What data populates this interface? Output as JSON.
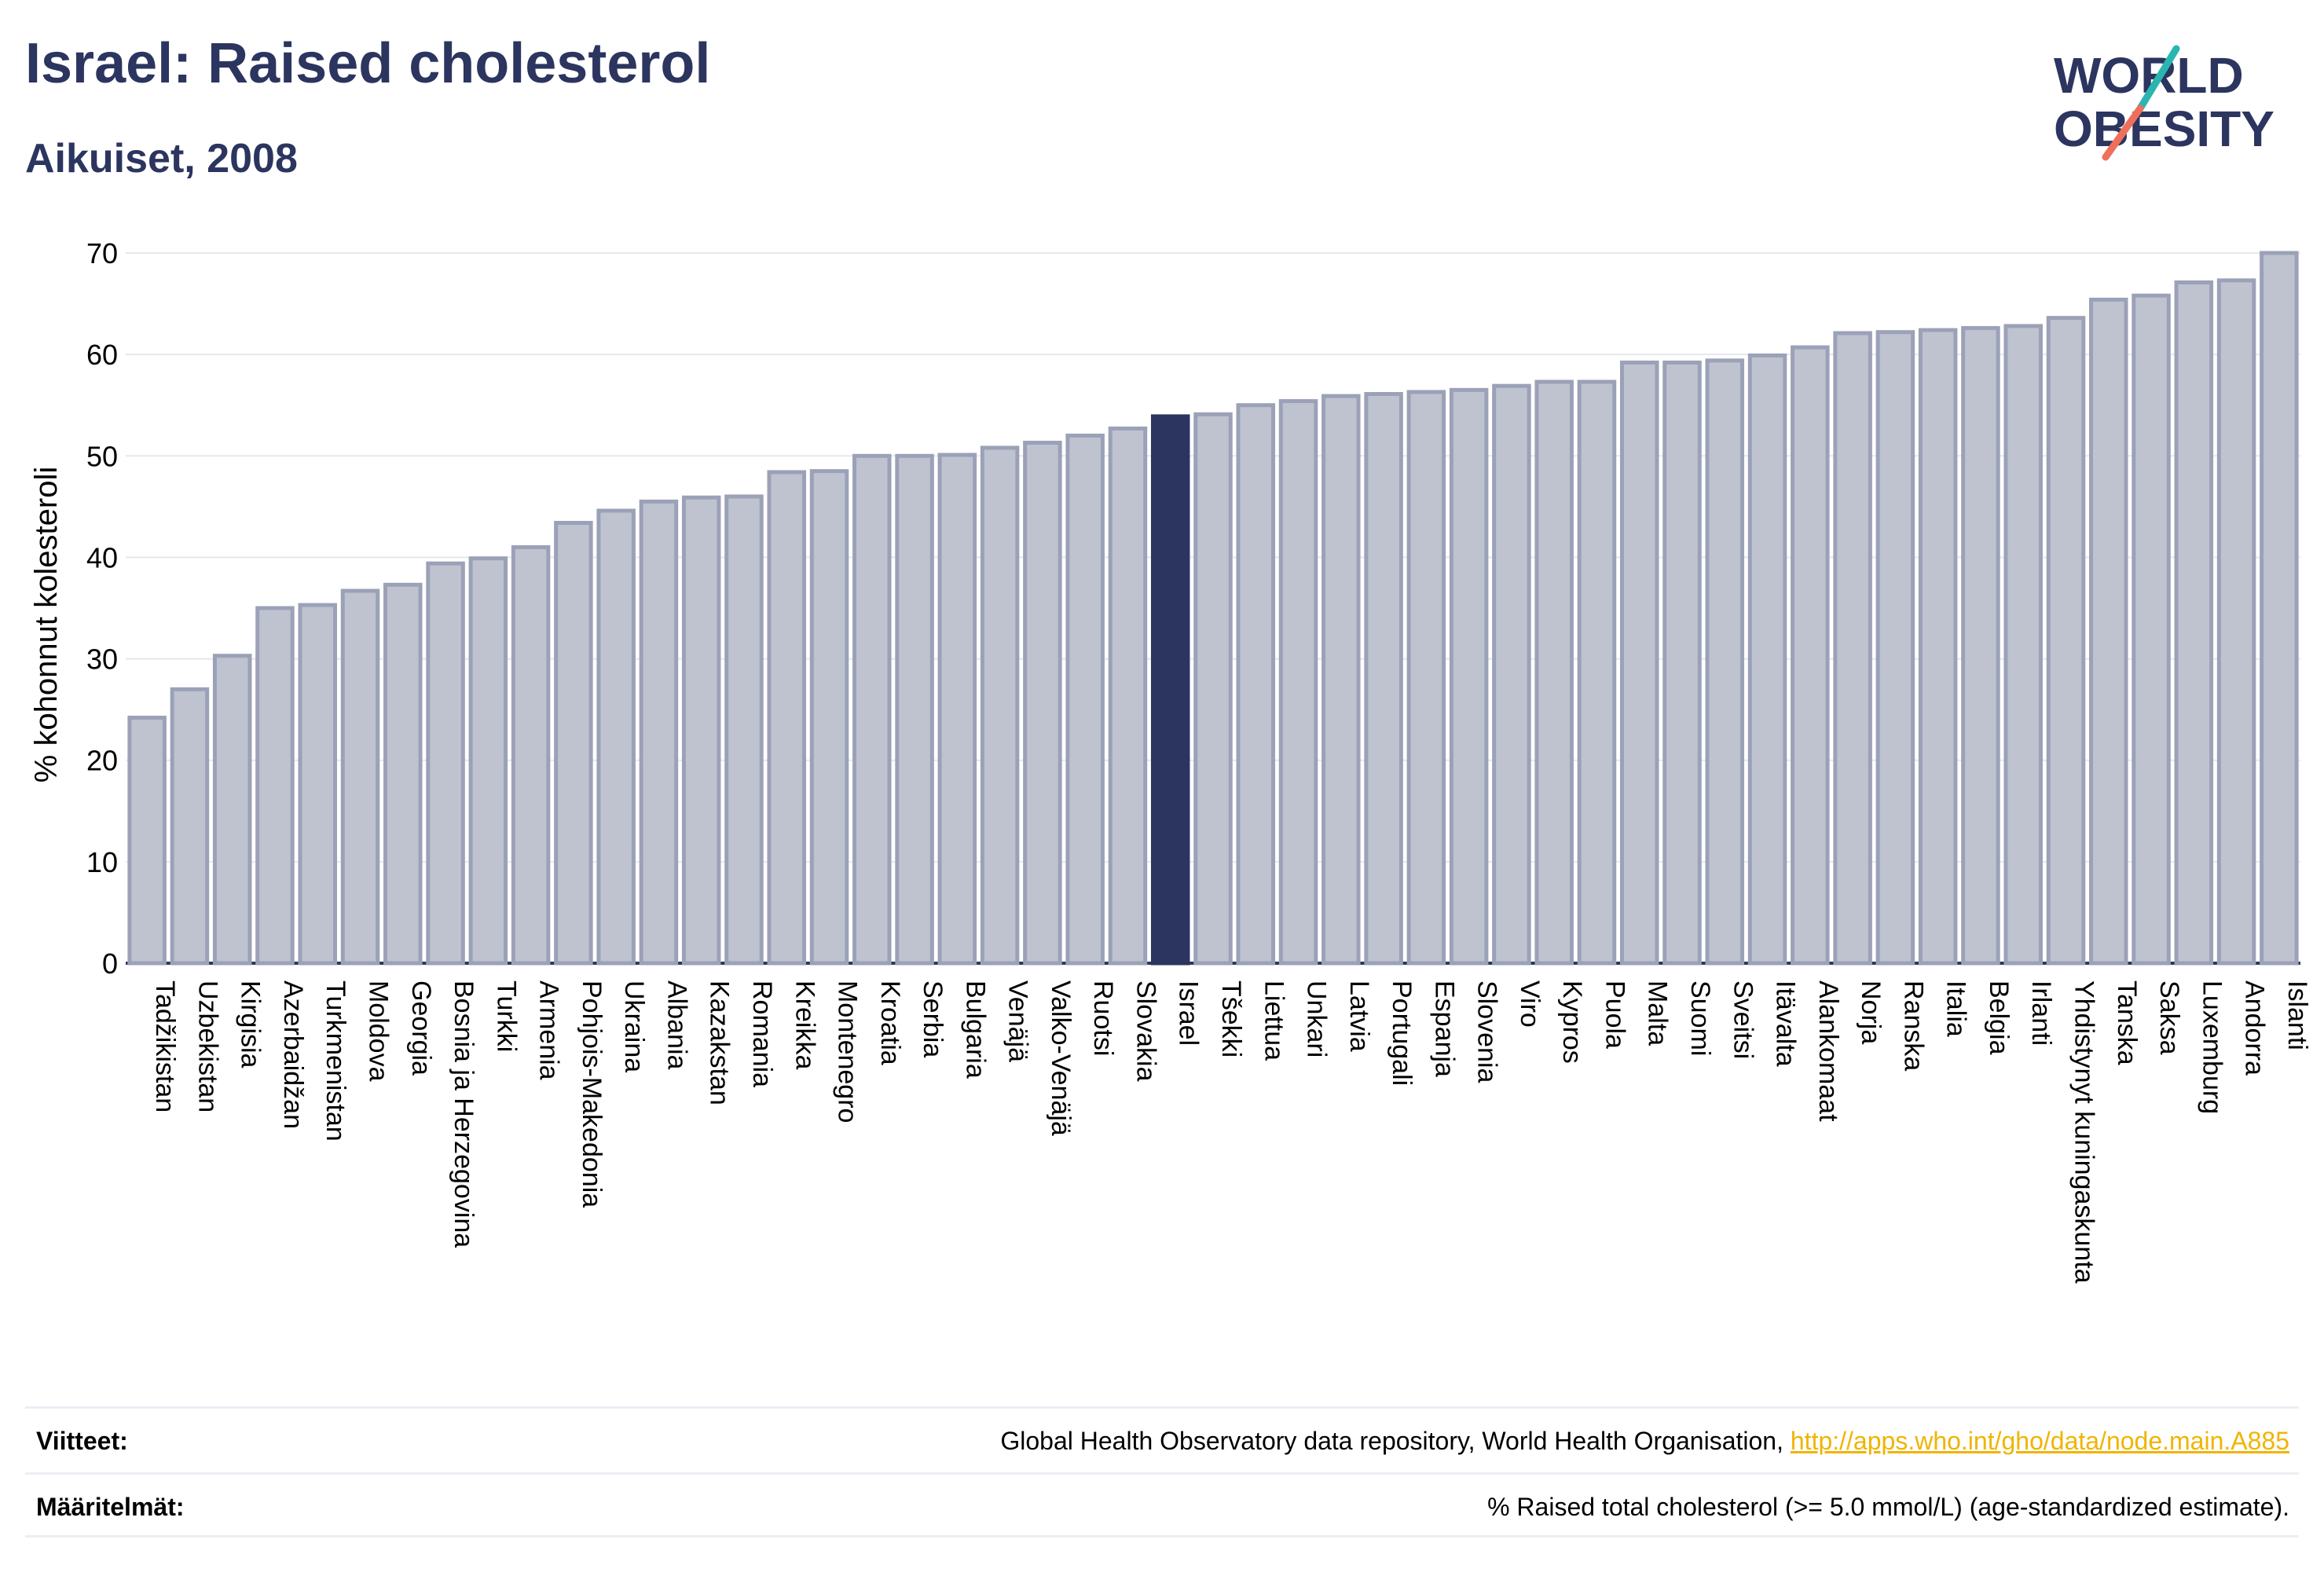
{
  "title": "Israel: Raised cholesterol",
  "subtitle": "Aikuiset, 2008",
  "logo": {
    "line1": "WORLD",
    "line2": "OBESITY"
  },
  "colors": {
    "highlight": "#2b355f",
    "bar_fill": "#bfc3d0",
    "bar_stroke": "#9ba1b7",
    "text": "#2b355f",
    "link": "#f0b400",
    "logo_teal": "#2bb5b0",
    "logo_coral": "#ef6f5a"
  },
  "chart_data": {
    "type": "bar",
    "ylabel": "% kohonnut kolesteroli",
    "ylim": [
      0,
      70
    ],
    "yticks": [
      0,
      10,
      20,
      30,
      40,
      50,
      60,
      70
    ],
    "grid": true,
    "highlight": "Israel",
    "categories": [
      "Tadžikistan",
      "Uzbekistan",
      "Kirgisia",
      "Azerbaidžan",
      "Turkmenistan",
      "Moldova",
      "Georgia",
      "Bosnia ja Herzegovina",
      "Turkki",
      "Armenia",
      "Pohjois-Makedonia",
      "Ukraina",
      "Albania",
      "Kazakstan",
      "Romania",
      "Kreikka",
      "Montenegro",
      "Kroatia",
      "Serbia",
      "Bulgaria",
      "Venäjä",
      "Valko-Venäjä",
      "Ruotsi",
      "Slovakia",
      "Israel",
      "Tšekki",
      "Liettua",
      "Unkari",
      "Latvia",
      "Portugali",
      "Espanja",
      "Slovenia",
      "Viro",
      "Kypros",
      "Puola",
      "Malta",
      "Suomi",
      "Sveitsi",
      "Itävalta",
      "Alankomaat",
      "Norja",
      "Ranska",
      "Italia",
      "Belgia",
      "Irlanti",
      "Yhdistynyt kuningaskunta",
      "Tanska",
      "Saksa",
      "Luxemburg",
      "Andorra",
      "Islanti"
    ],
    "values": [
      24.2,
      27.0,
      30.3,
      35.0,
      35.3,
      36.7,
      37.3,
      39.4,
      39.9,
      41.0,
      43.4,
      44.6,
      45.5,
      45.9,
      46.0,
      48.4,
      48.5,
      50.0,
      50.0,
      50.1,
      50.8,
      51.3,
      52.0,
      52.7,
      53.9,
      54.1,
      55.0,
      55.4,
      55.9,
      56.1,
      56.3,
      56.5,
      56.9,
      57.3,
      57.3,
      59.2,
      59.2,
      59.4,
      59.9,
      60.7,
      62.1,
      62.2,
      62.4,
      62.6,
      62.8,
      63.6,
      65.4,
      65.8,
      67.1,
      67.3,
      70.0
    ]
  },
  "footer": {
    "references_label": "Viitteet:",
    "references_text": "Global Health Observatory data repository, World Health Organisation, ",
    "references_link": "http://apps.who.int/gho/data/node.main.A885",
    "definitions_label": "Määritelmät:",
    "definitions_text": "% Raised total cholesterol (>= 5.0 mmol/L) (age-standardized estimate)."
  }
}
